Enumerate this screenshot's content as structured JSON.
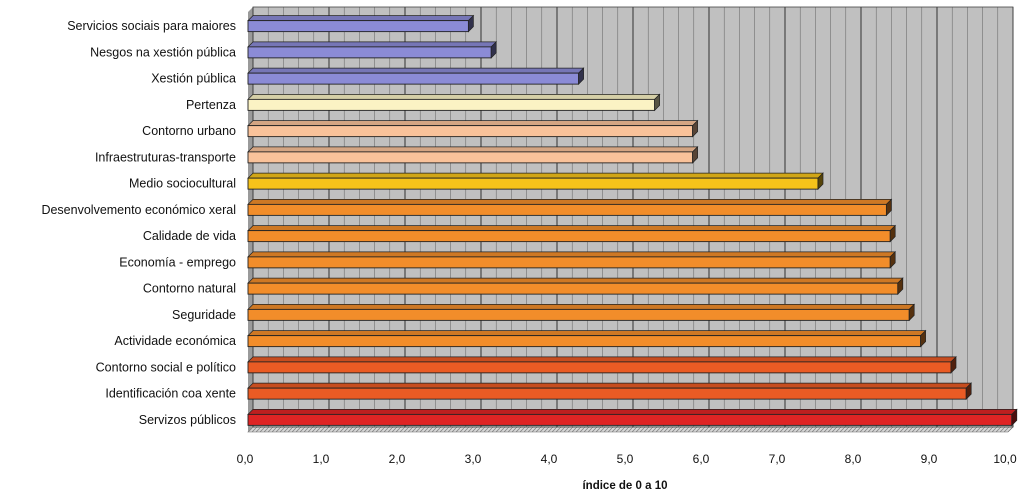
{
  "chart_data": {
    "type": "bar",
    "orientation": "horizontal",
    "categories": [
      "Servicios sociais para maiores",
      "Nesgos na xestión pública",
      "Xestión pública",
      "Pertenza",
      "Contorno urbano",
      "Infraestruturas-transporte",
      "Medio sociocultural",
      "Desenvolvemento económico xeral",
      "Calidade de vida",
      "Economía - emprego",
      "Contorno natural",
      "Seguridade",
      "Actividade económica",
      "Contorno social e político",
      "Identificación coa xente",
      "Servizos públicos"
    ],
    "values": [
      2.9,
      3.2,
      4.35,
      5.35,
      5.85,
      5.85,
      7.5,
      8.4,
      8.45,
      8.45,
      8.55,
      8.7,
      8.85,
      9.25,
      9.45,
      10.05
    ],
    "colors": [
      "#8b8bd6",
      "#8b8bd6",
      "#8b8bd6",
      "#fbf3c4",
      "#f9c29a",
      "#f9c29a",
      "#f6c31a",
      "#f28d2a",
      "#f28d2a",
      "#f28d2a",
      "#f28d2a",
      "#f28d2a",
      "#f28d2a",
      "#ea5b24",
      "#ea5b24",
      "#df2424"
    ],
    "xlabel": "índice de 0 a 10",
    "xlim": [
      0,
      10
    ],
    "xticks": [
      "0,0",
      "1,0",
      "2,0",
      "3,0",
      "4,0",
      "5,0",
      "6,0",
      "7,0",
      "8,0",
      "9,0",
      "10,0"
    ],
    "grid": true,
    "background": "#c0c0c0",
    "legend": "none"
  }
}
